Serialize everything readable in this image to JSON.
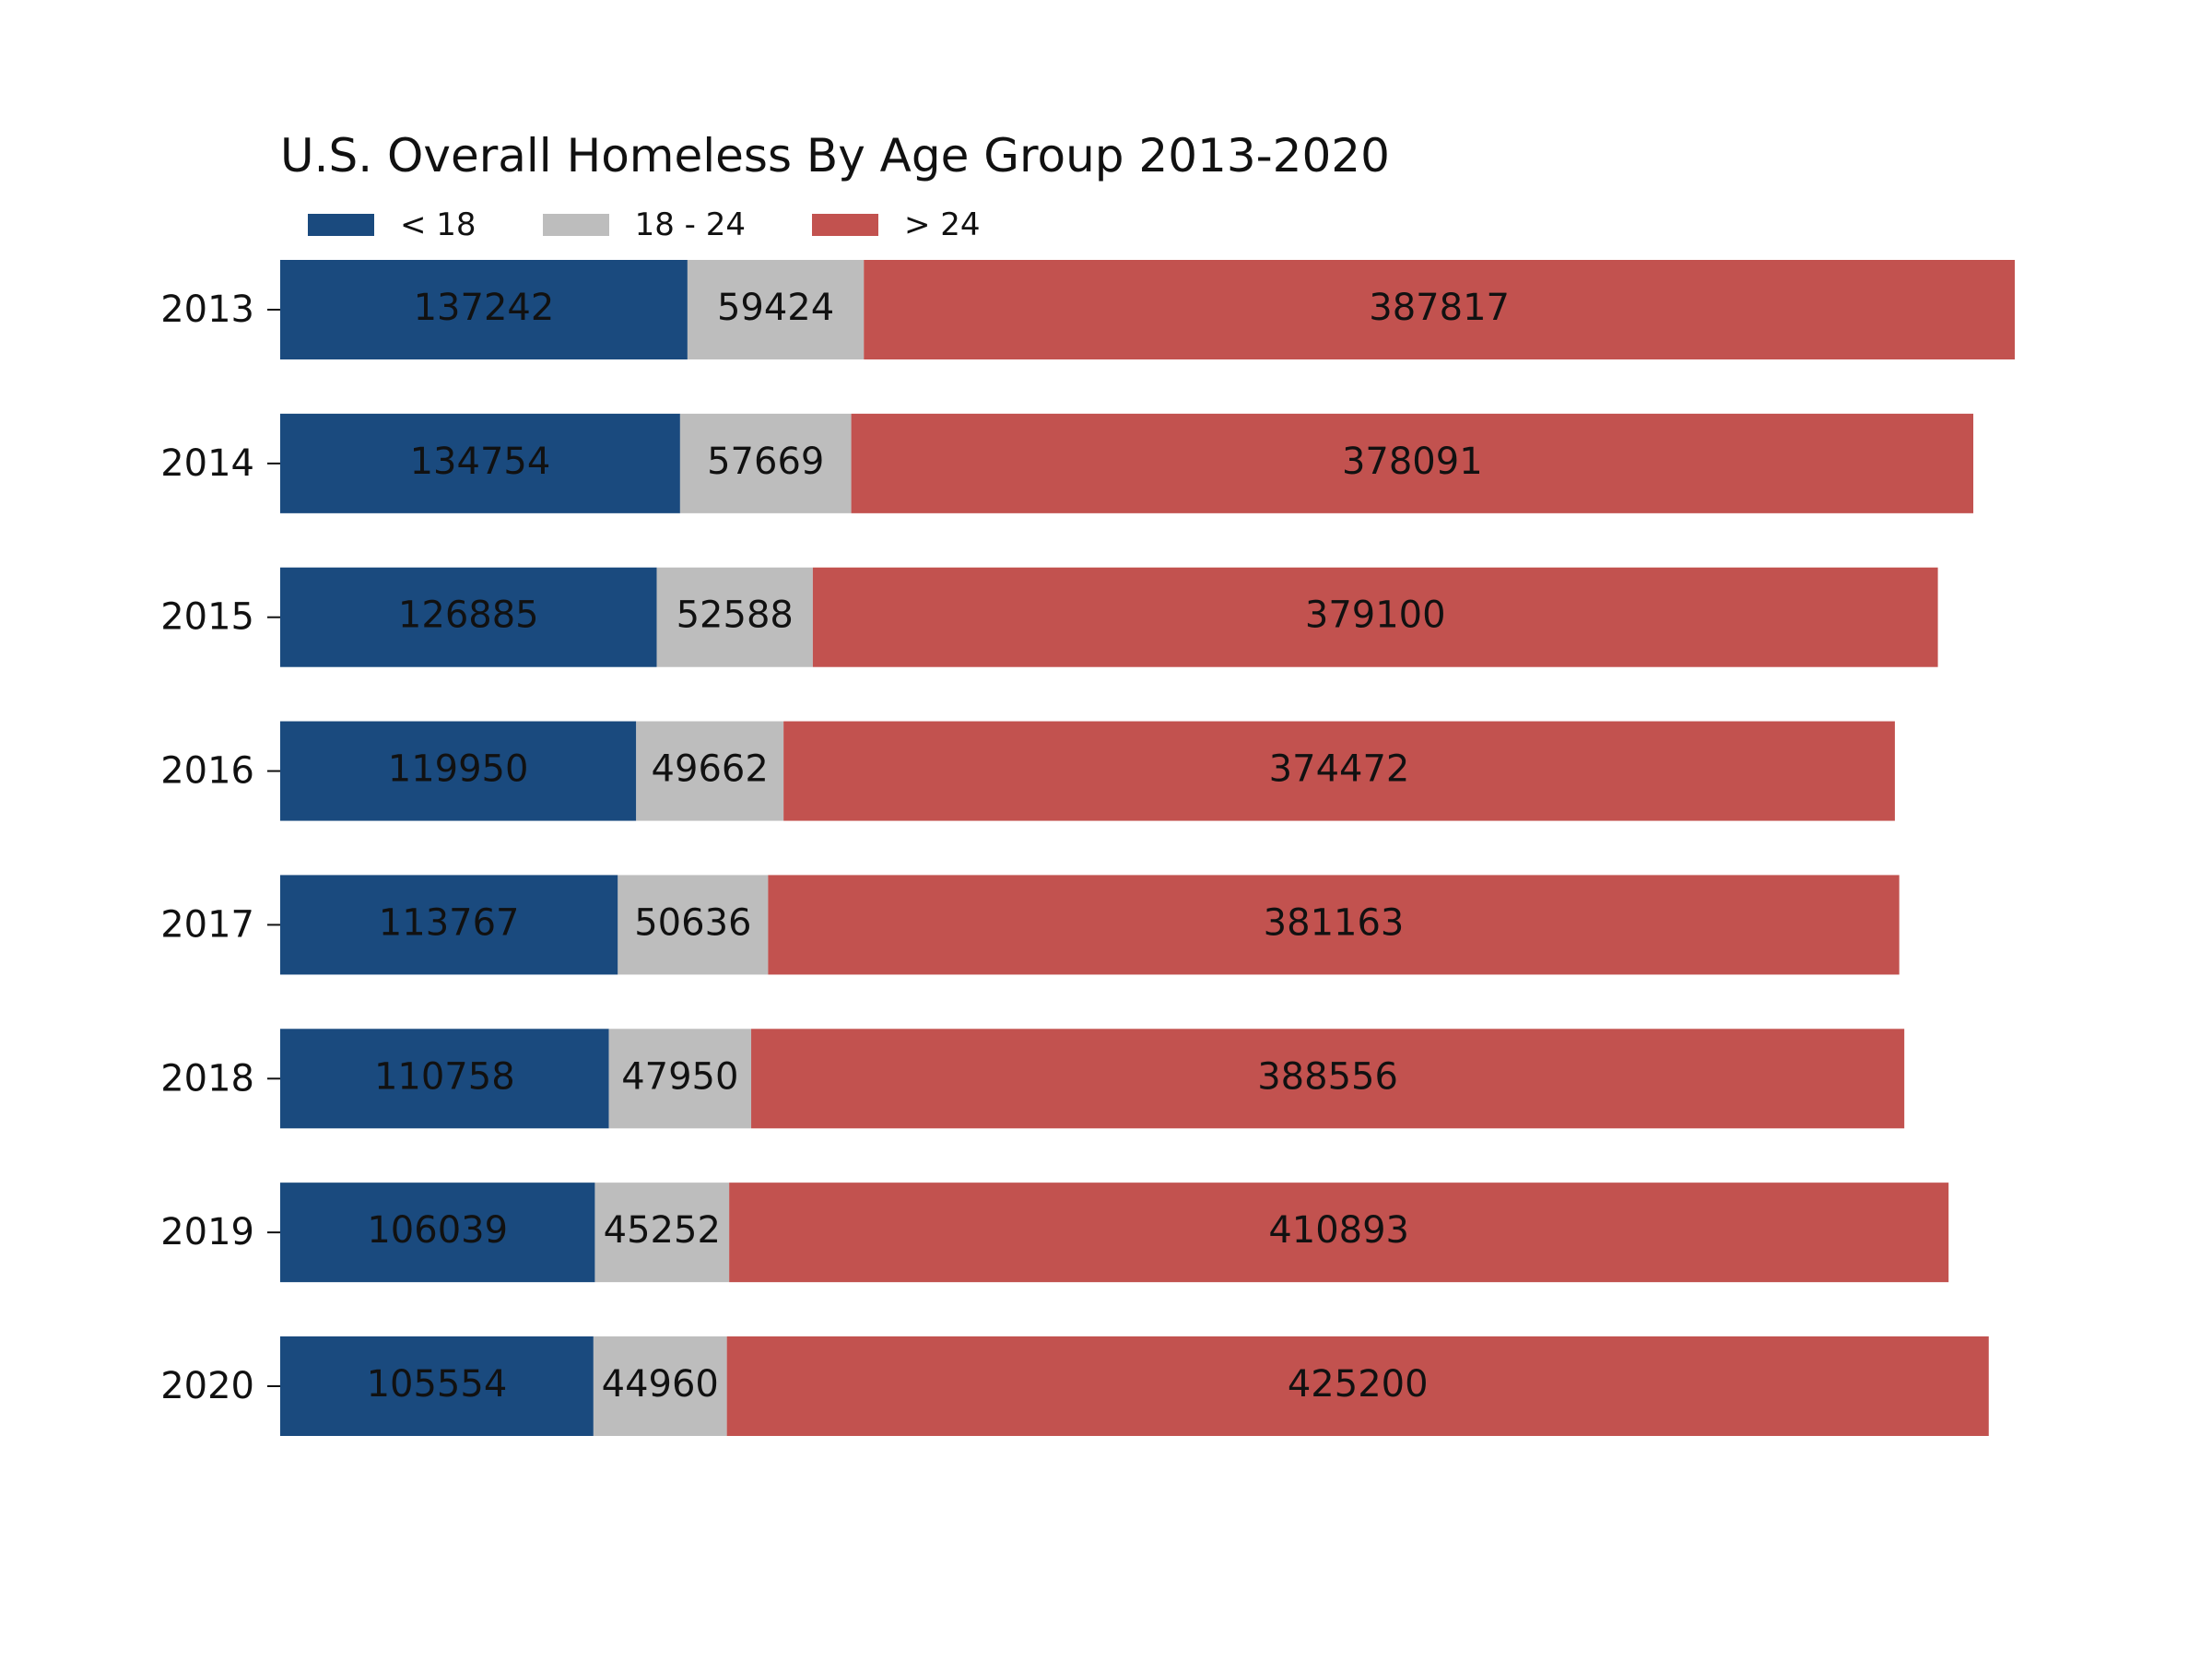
{
  "chart_data": {
    "type": "bar",
    "orientation": "horizontal",
    "stacked": true,
    "title": "U.S. Overall Homeless By Age Group 2013-2020",
    "categories": [
      "2013",
      "2014",
      "2015",
      "2016",
      "2017",
      "2018",
      "2019",
      "2020"
    ],
    "series": [
      {
        "name": "< 18",
        "color": "#1a4a7e",
        "values": [
          137242,
          134754,
          126885,
          119950,
          113767,
          110758,
          106039,
          105554
        ]
      },
      {
        "name": "18 - 24",
        "color": "#bdbdbd",
        "values": [
          59424,
          57669,
          52588,
          49662,
          50636,
          47950,
          45252,
          44960
        ]
      },
      {
        "name": "> 24",
        "color": "#c2524f",
        "values": [
          387817,
          378091,
          379100,
          374472,
          381163,
          388556,
          410893,
          425200
        ]
      }
    ],
    "legend_position": "top-left",
    "grid": false,
    "xlim": [
      0,
      584483
    ]
  }
}
